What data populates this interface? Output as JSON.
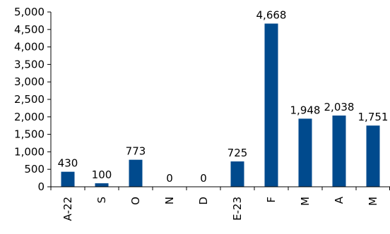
{
  "chart_data": {
    "type": "bar",
    "categories": [
      "A-22",
      "S",
      "O",
      "N",
      "D",
      "E-23",
      "F",
      "M",
      "A",
      "M"
    ],
    "values": [
      430,
      100,
      773,
      0,
      0,
      725,
      4668,
      1948,
      2038,
      1751
    ],
    "data_labels": [
      "430",
      "100",
      "773",
      "0",
      "0",
      "725",
      "4,668",
      "1,948",
      "2,038",
      "1,751"
    ],
    "y_ticks": [
      "0",
      "500",
      "1,000",
      "1,500",
      "2,000",
      "2,500",
      "3,000",
      "3,500",
      "4,000",
      "4,500",
      "5,000"
    ],
    "ylim": [
      0,
      5000
    ],
    "title": "",
    "xlabel": "",
    "ylabel": "",
    "grid": false,
    "legend": "none",
    "bar_color": "#004A8D"
  }
}
